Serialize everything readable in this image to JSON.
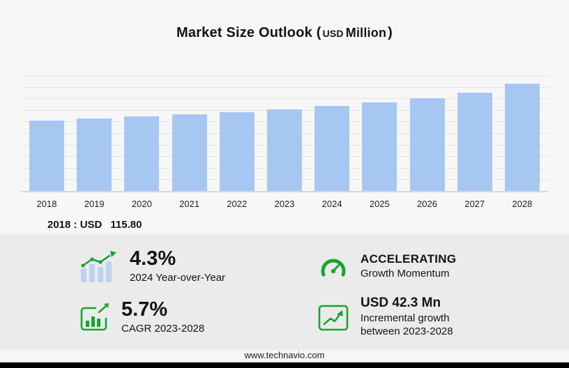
{
  "title": {
    "text": "Market Size Outlook",
    "open": "(",
    "currency": "USD",
    "unit": "Million",
    "close": ")"
  },
  "note": {
    "label": "2018 : USD",
    "value": "115.80"
  },
  "chart_data": {
    "type": "bar",
    "title": "Market Size Outlook (USD Million)",
    "categories": [
      "2018",
      "2019",
      "2020",
      "2021",
      "2022",
      "2023",
      "2024",
      "2025",
      "2026",
      "2027",
      "2028"
    ],
    "values": [
      115.8,
      119.5,
      122.6,
      126.0,
      129.8,
      133.6,
      139.3,
      145.6,
      152.8,
      161.9,
      175.9
    ],
    "xlabel": "",
    "ylabel": "USD Million",
    "ylim": [
      0,
      190
    ],
    "grid": true,
    "legend": "none",
    "bar_color": "#a7c7f3",
    "annotations": [
      "2018 : USD 115.80"
    ]
  },
  "stats": [
    {
      "id": "yoy",
      "value": "4.3%",
      "label": "2024 Year-over-Year",
      "icon": "yoy-bars-icon"
    },
    {
      "id": "momentum",
      "value": "ACCELERATING",
      "label": "Growth Momentum",
      "icon": "speedometer-icon"
    },
    {
      "id": "cagr",
      "value": "5.7%",
      "label": "CAGR 2023-2028",
      "icon": "cagr-chart-icon"
    },
    {
      "id": "incremental",
      "value": "USD 42.3 Mn",
      "label": "Incremental growth between 2023-2028",
      "icon": "growth-line-icon"
    }
  ],
  "footer": {
    "url": "www.technavio.com"
  },
  "colors": {
    "accent_green": "#17a52f",
    "bar_blue": "#a7c7f3",
    "panel_gray": "#ebebeb",
    "bottom_bar": "#000000"
  }
}
